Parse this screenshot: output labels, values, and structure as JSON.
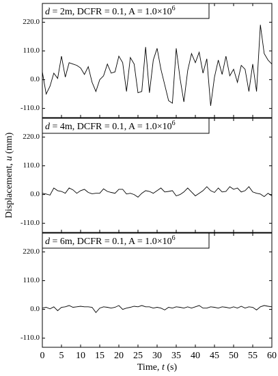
{
  "chart_data": [
    {
      "type": "line",
      "annotation": [
        "d",
        " = 2m, DCFR = 0.1, A = 1.0×10",
        "6"
      ],
      "x": [
        0,
        1,
        2,
        3,
        4,
        5,
        6,
        7,
        8,
        9,
        10,
        11,
        12,
        13,
        14,
        15,
        16,
        17,
        18,
        19,
        20,
        21,
        22,
        23,
        24,
        25,
        26,
        27,
        28,
        29,
        30,
        31,
        32,
        33,
        34,
        35,
        36,
        37,
        38,
        39,
        40,
        41,
        42,
        43,
        44,
        45,
        46,
        47,
        48,
        49,
        50,
        51,
        52,
        53,
        54,
        55,
        56,
        57,
        58,
        59,
        60
      ],
      "series": [
        {
          "name": "d = 2m",
          "color": "#000000",
          "values": [
            30,
            -55,
            -25,
            25,
            5,
            90,
            10,
            65,
            60,
            55,
            45,
            20,
            50,
            -10,
            -45,
            0,
            15,
            60,
            25,
            30,
            90,
            65,
            -45,
            85,
            60,
            -50,
            -45,
            125,
            -50,
            75,
            120,
            40,
            -20,
            -80,
            -90,
            120,
            5,
            -85,
            35,
            100,
            65,
            105,
            25,
            80,
            -100,
            10,
            75,
            20,
            90,
            15,
            40,
            -10,
            55,
            40,
            -45,
            60,
            -45,
            210,
            100,
            75,
            60
          ]
        }
      ],
      "ylim": [
        -145,
        292
      ],
      "yticks": [
        {
          "value": -110,
          "label": "-110.0"
        },
        {
          "value": 0,
          "label": "0.0"
        },
        {
          "value": 110,
          "label": "110.0"
        },
        {
          "value": 220,
          "label": "220.0"
        }
      ]
    },
    {
      "type": "line",
      "annotation": [
        "d",
        " = 4m, DCFR = 0.1, A = 1.0×10",
        "6"
      ],
      "ylabel": [
        "Displacement, ",
        "u",
        " (mm)"
      ],
      "x": [
        0,
        1,
        2,
        3,
        4,
        5,
        6,
        7,
        8,
        9,
        10,
        11,
        12,
        13,
        14,
        15,
        16,
        17,
        18,
        19,
        20,
        21,
        22,
        23,
        24,
        25,
        26,
        27,
        28,
        29,
        30,
        31,
        32,
        33,
        34,
        35,
        36,
        37,
        38,
        39,
        40,
        41,
        42,
        43,
        44,
        45,
        46,
        47,
        48,
        49,
        50,
        51,
        52,
        53,
        54,
        55,
        56,
        57,
        58,
        59,
        60
      ],
      "series": [
        {
          "name": "d = 4m",
          "color": "#000000",
          "values": [
            5,
            2,
            -2,
            25,
            15,
            12,
            5,
            25,
            18,
            5,
            15,
            20,
            8,
            3,
            5,
            5,
            22,
            12,
            8,
            5,
            20,
            20,
            2,
            5,
            0,
            -10,
            5,
            15,
            12,
            5,
            15,
            25,
            10,
            12,
            15,
            -5,
            0,
            10,
            25,
            10,
            -5,
            5,
            15,
            30,
            15,
            8,
            25,
            10,
            12,
            30,
            20,
            25,
            10,
            15,
            30,
            10,
            5,
            2,
            -8,
            5,
            -5
          ]
        }
      ],
      "ylim": [
        -145,
        292
      ],
      "yticks": [
        {
          "value": -110,
          "label": "-110.0"
        },
        {
          "value": 0,
          "label": "0.0"
        },
        {
          "value": 110,
          "label": "110.0"
        },
        {
          "value": 220,
          "label": "220.0"
        }
      ]
    },
    {
      "type": "line",
      "annotation": [
        "d",
        " = 6m, DCFR = 0.1, A = 1.0×10",
        "6"
      ],
      "xlabel": [
        "Time, ",
        "t",
        " (s)"
      ],
      "x": [
        0,
        1,
        2,
        3,
        4,
        5,
        6,
        7,
        8,
        9,
        10,
        11,
        12,
        13,
        14,
        15,
        16,
        17,
        18,
        19,
        20,
        21,
        22,
        23,
        24,
        25,
        26,
        27,
        28,
        29,
        30,
        31,
        32,
        33,
        34,
        35,
        36,
        37,
        38,
        39,
        40,
        41,
        42,
        43,
        44,
        45,
        46,
        47,
        48,
        49,
        50,
        51,
        52,
        53,
        54,
        55,
        56,
        57,
        58,
        59,
        60
      ],
      "series": [
        {
          "name": "d = 6m",
          "color": "#000000",
          "values": [
            5,
            8,
            2,
            10,
            -5,
            8,
            10,
            15,
            8,
            10,
            12,
            10,
            10,
            8,
            -12,
            5,
            10,
            8,
            5,
            8,
            15,
            0,
            5,
            8,
            12,
            10,
            15,
            10,
            10,
            5,
            8,
            5,
            -2,
            8,
            5,
            10,
            8,
            5,
            10,
            5,
            10,
            15,
            5,
            5,
            10,
            8,
            5,
            10,
            8,
            5,
            10,
            5,
            12,
            5,
            10,
            8,
            -2,
            10,
            15,
            12,
            10
          ]
        }
      ],
      "xlim": [
        0,
        60
      ],
      "xticks": [
        0,
        5,
        10,
        15,
        20,
        25,
        30,
        35,
        40,
        45,
        50,
        55,
        60
      ],
      "ylim": [
        -145,
        292
      ],
      "yticks": [
        {
          "value": -110,
          "label": "-110.0"
        },
        {
          "value": 0,
          "label": "0.0"
        },
        {
          "value": 110,
          "label": "110.0"
        },
        {
          "value": 220,
          "label": "220.0"
        }
      ]
    }
  ]
}
